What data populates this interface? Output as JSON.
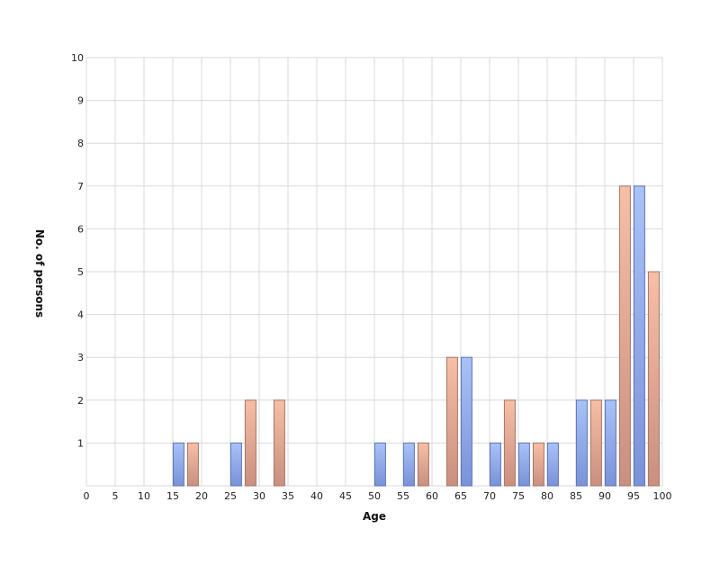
{
  "chart_data": {
    "type": "bar",
    "title": "",
    "xlabel": "Age",
    "ylabel": "No. of persons",
    "xlim": [
      0,
      100
    ],
    "ylim": [
      0,
      10
    ],
    "x_ticks": [
      "0",
      "5",
      "10",
      "15",
      "20",
      "25",
      "30",
      "35",
      "40",
      "45",
      "50",
      "55",
      "60",
      "65",
      "70",
      "75",
      "80",
      "85",
      "90",
      "95",
      "100"
    ],
    "y_ticks": [
      "1",
      "2",
      "3",
      "4",
      "5",
      "6",
      "7",
      "8",
      "9",
      "10"
    ],
    "grid": true,
    "legend": "none",
    "series": [
      {
        "color_top": "#a9c2f7",
        "color_bottom": "#7a92d8",
        "stroke": "#5d74b8",
        "x": [
          16,
          26,
          51,
          56,
          66,
          71,
          76,
          81,
          86,
          91,
          96
        ],
        "values": [
          1,
          1,
          1,
          1,
          3,
          1,
          1,
          1,
          2,
          2,
          7
        ]
      },
      {
        "color_top": "#f7bfa6",
        "color_bottom": "#c98f80",
        "stroke": "#a87466",
        "x": [
          18.5,
          28.5,
          33.5,
          58.5,
          63.5,
          73.5,
          78.5,
          88.5,
          93.5,
          98.5
        ],
        "values": [
          1,
          2,
          2,
          1,
          3,
          2,
          1,
          2,
          7,
          5
        ]
      }
    ]
  }
}
